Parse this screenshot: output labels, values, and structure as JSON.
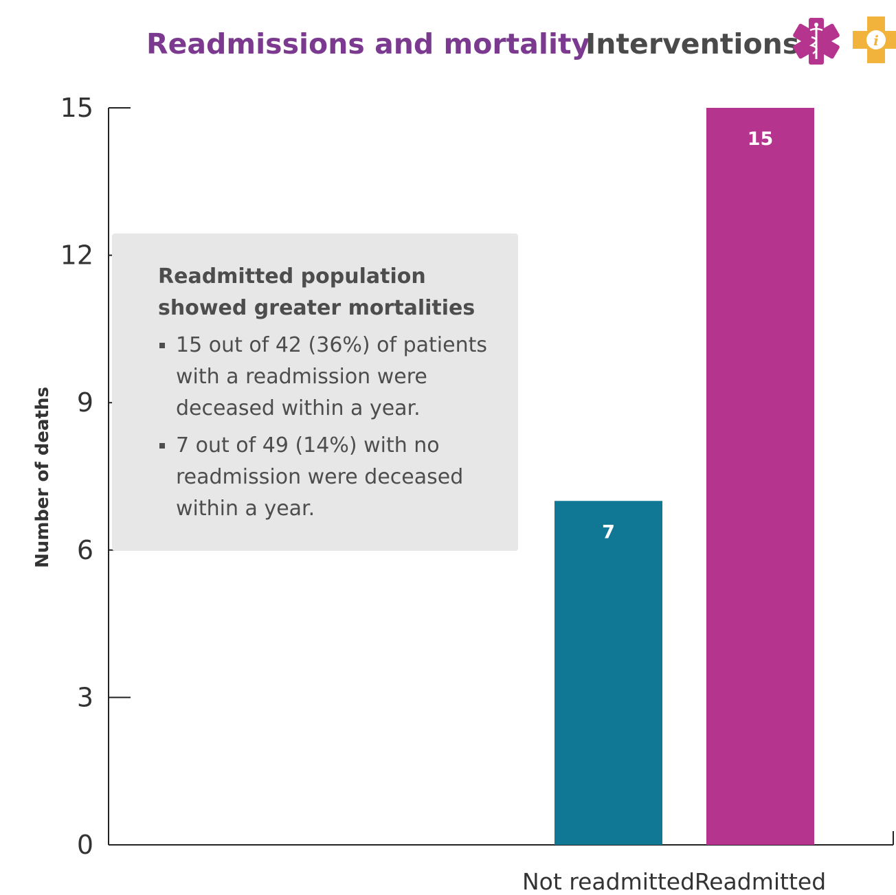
{
  "header": {
    "title": "Readmissions and mortality",
    "interventions_label": "Interventions:",
    "icons": [
      "medical-caduceus-icon",
      "info-cross-icon"
    ],
    "title_color": "#7b3a8f",
    "interventions_color": "#4a4a4a"
  },
  "callout": {
    "title": "Readmitted population showed greater mortalities",
    "bullets": [
      "15 out of 42 (36%) of patients with a readmission were deceased within a year.",
      "7 out of 49 (14%) with no readmission were deceased within a year."
    ]
  },
  "chart_data": {
    "type": "bar",
    "title": "Readmissions and mortality",
    "xlabel": "",
    "ylabel": "Number of deaths",
    "categories": [
      "Not readmitted",
      "Readmitted"
    ],
    "values": [
      7,
      15
    ],
    "data_labels": [
      "7",
      "15"
    ],
    "colors": [
      "#107895",
      "#b5358e"
    ],
    "ylim": [
      0,
      15
    ],
    "yticks": [
      0,
      3,
      6,
      9,
      12,
      15
    ],
    "grid": false,
    "legend": false
  },
  "icon_colors": {
    "caduceus": "#b5358e",
    "info": "#f2b33d"
  }
}
